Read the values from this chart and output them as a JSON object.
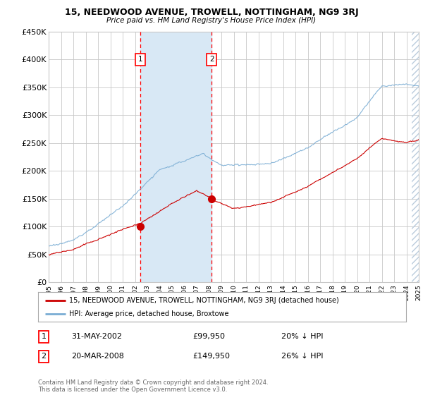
{
  "title": "15, NEEDWOOD AVENUE, TROWELL, NOTTINGHAM, NG9 3RJ",
  "subtitle": "Price paid vs. HM Land Registry's House Price Index (HPI)",
  "bg_color": "#ffffff",
  "plot_bg_color": "#ffffff",
  "grid_color": "#c8c8c8",
  "hpi_color": "#7aadd4",
  "price_color": "#cc0000",
  "sale1_x": 2002.42,
  "sale1_y": 99950,
  "sale1_label": "1",
  "sale1_date": "31-MAY-2002",
  "sale1_price": "£99,950",
  "sale1_hpi": "20% ↓ HPI",
  "sale2_x": 2008.22,
  "sale2_y": 149950,
  "sale2_label": "2",
  "sale2_date": "20-MAR-2008",
  "sale2_price": "£149,950",
  "sale2_hpi": "26% ↓ HPI",
  "xmin": 1995,
  "xmax": 2025,
  "ymin": 0,
  "ymax": 450000,
  "yticks": [
    0,
    50000,
    100000,
    150000,
    200000,
    250000,
    300000,
    350000,
    400000,
    450000
  ],
  "ytick_labels": [
    "£0",
    "£50K",
    "£100K",
    "£150K",
    "£200K",
    "£250K",
    "£300K",
    "£350K",
    "£400K",
    "£450K"
  ],
  "legend_line1": "15, NEEDWOOD AVENUE, TROWELL, NOTTINGHAM, NG9 3RJ (detached house)",
  "legend_line2": "HPI: Average price, detached house, Broxtowe",
  "footer1": "Contains HM Land Registry data © Crown copyright and database right 2024.",
  "footer2": "This data is licensed under the Open Government Licence v3.0.",
  "span_color": "#d8e8f5",
  "hatch_start": 2024.42
}
